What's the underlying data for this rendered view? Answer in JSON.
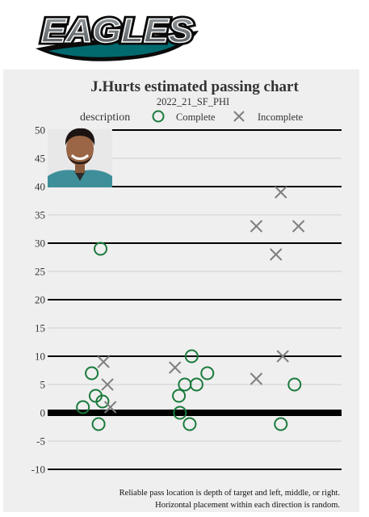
{
  "logo": {
    "text": "EAGLES"
  },
  "chart_data": {
    "type": "scatter",
    "title": "J.Hurts estimated passing chart",
    "subtitle": "2022_21_SF_PHI",
    "legend": {
      "title": "description",
      "position": "top",
      "entries": [
        {
          "label": "Complete",
          "marker": "circle",
          "color": "#1a7a3c"
        },
        {
          "label": "Incomplete",
          "marker": "x",
          "color": "#7f7f7f"
        }
      ]
    },
    "ylim": [
      -10,
      50
    ],
    "yticks": [
      -10,
      -5,
      0,
      5,
      10,
      15,
      20,
      25,
      30,
      35,
      40,
      45,
      50
    ],
    "ytick_labels": [
      "-10",
      "-5",
      "0",
      "5",
      "10",
      "15",
      "20",
      "25",
      "30",
      "35",
      "40",
      "45",
      "50"
    ],
    "xlim": [
      0,
      3
    ],
    "grid": true,
    "caption": [
      "Reliable pass location is depth of target and left, middle, or right.",
      "Horizontal placement within each direction is random."
    ],
    "series": [
      {
        "name": "Complete",
        "points": [
          {
            "x": 0.54,
            "y": 29
          },
          {
            "x": 0.45,
            "y": 7
          },
          {
            "x": 0.49,
            "y": 3
          },
          {
            "x": 0.56,
            "y": 2
          },
          {
            "x": 0.36,
            "y": 1
          },
          {
            "x": 0.52,
            "y": -2
          },
          {
            "x": 1.47,
            "y": 10
          },
          {
            "x": 1.63,
            "y": 7
          },
          {
            "x": 1.4,
            "y": 5
          },
          {
            "x": 1.52,
            "y": 5
          },
          {
            "x": 1.34,
            "y": 3
          },
          {
            "x": 1.35,
            "y": 0
          },
          {
            "x": 1.45,
            "y": -2
          },
          {
            "x": 2.52,
            "y": 5
          },
          {
            "x": 2.38,
            "y": -2
          }
        ]
      },
      {
        "name": "Incomplete",
        "points": [
          {
            "x": 0.57,
            "y": 9
          },
          {
            "x": 0.61,
            "y": 5
          },
          {
            "x": 0.64,
            "y": 1
          },
          {
            "x": 1.3,
            "y": 8
          },
          {
            "x": 2.38,
            "y": 39
          },
          {
            "x": 2.13,
            "y": 33
          },
          {
            "x": 2.56,
            "y": 33
          },
          {
            "x": 2.33,
            "y": 28
          },
          {
            "x": 2.4,
            "y": 10
          },
          {
            "x": 2.13,
            "y": 6
          }
        ]
      }
    ]
  }
}
